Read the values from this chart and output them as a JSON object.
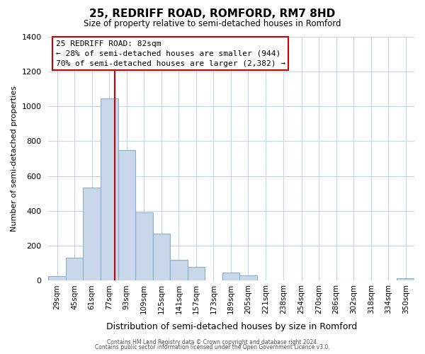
{
  "title": "25, REDRIFF ROAD, ROMFORD, RM7 8HD",
  "subtitle": "Size of property relative to semi-detached houses in Romford",
  "xlabel": "Distribution of semi-detached houses by size in Romford",
  "ylabel": "Number of semi-detached properties",
  "bar_color": "#c8d8ea",
  "bar_edge_color": "#8ab0cc",
  "marker_line_color": "#cc0000",
  "marker_value_bin": 3,
  "bin_edges": [
    21,
    37,
    53,
    69,
    85,
    101,
    117,
    133,
    149,
    165,
    181,
    197,
    213,
    229,
    246,
    262,
    278,
    294,
    310,
    326,
    342,
    358
  ],
  "bin_labels": [
    "29sqm",
    "45sqm",
    "61sqm",
    "77sqm",
    "93sqm",
    "109sqm",
    "125sqm",
    "141sqm",
    "157sqm",
    "173sqm",
    "189sqm",
    "205sqm",
    "221sqm",
    "238sqm",
    "254sqm",
    "270sqm",
    "286sqm",
    "302sqm",
    "318sqm",
    "334sqm",
    "350sqm"
  ],
  "counts": [
    25,
    130,
    535,
    1045,
    750,
    390,
    270,
    120,
    80,
    0,
    45,
    30,
    0,
    0,
    0,
    0,
    0,
    0,
    0,
    0,
    15
  ],
  "ylim": [
    0,
    1400
  ],
  "yticks": [
    0,
    200,
    400,
    600,
    800,
    1000,
    1200,
    1400
  ],
  "annotation_title": "25 REDRIFF ROAD: 82sqm",
  "annotation_line1": "← 28% of semi-detached houses are smaller (944)",
  "annotation_line2": "70% of semi-detached houses are larger (2,382) →",
  "footer1": "Contains HM Land Registry data © Crown copyright and database right 2024.",
  "footer2": "Contains public sector information licensed under the Open Government Licence v3.0.",
  "background_color": "#ffffff",
  "grid_color": "#c8d8e8"
}
